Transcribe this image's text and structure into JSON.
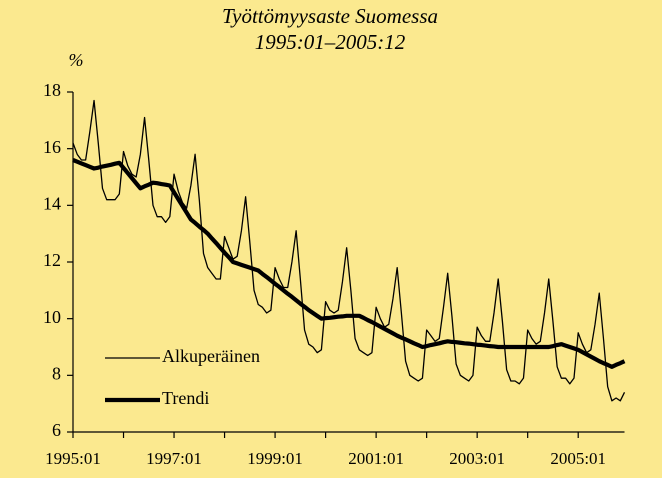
{
  "chart_data": {
    "type": "line",
    "title": "Työttömyysaste Suomessa",
    "subtitle": "1995:01–2005:12",
    "y_label": "%",
    "categories": [
      "1995:01",
      null,
      null,
      null,
      null,
      null,
      null,
      null,
      null,
      null,
      null,
      null,
      null,
      null,
      null,
      null,
      null,
      null,
      null,
      null,
      null,
      null,
      null,
      null,
      "1997:01",
      null,
      null,
      null,
      null,
      null,
      null,
      null,
      null,
      null,
      null,
      null,
      null,
      null,
      null,
      null,
      null,
      null,
      null,
      null,
      null,
      null,
      null,
      null,
      "1999:01",
      null,
      null,
      null,
      null,
      null,
      null,
      null,
      null,
      null,
      null,
      null,
      null,
      null,
      null,
      null,
      null,
      null,
      null,
      null,
      null,
      null,
      null,
      null,
      "2001:01",
      null,
      null,
      null,
      null,
      null,
      null,
      null,
      null,
      null,
      null,
      null,
      null,
      null,
      null,
      null,
      null,
      null,
      null,
      null,
      null,
      null,
      null,
      null,
      "2003:01",
      null,
      null,
      null,
      null,
      null,
      null,
      null,
      null,
      null,
      null,
      null,
      null,
      null,
      null,
      null,
      null,
      null,
      null,
      null,
      null,
      null,
      null,
      null,
      "2005:01",
      null,
      null,
      null,
      null,
      null,
      null,
      null,
      null,
      null,
      null,
      null
    ],
    "series": [
      {
        "name": "Alkuperäinen",
        "color": "#000000",
        "values": [
          16.2,
          15.8,
          15.6,
          15.6,
          16.6,
          17.7,
          16.2,
          14.6,
          14.2,
          14.2,
          14.2,
          14.4,
          15.9,
          15.4,
          15.1,
          15.0,
          15.8,
          17.1,
          15.6,
          14.0,
          13.6,
          13.6,
          13.4,
          13.6,
          15.1,
          14.5,
          14.1,
          13.9,
          14.7,
          15.8,
          14.2,
          12.3,
          11.8,
          11.6,
          11.4,
          11.4,
          12.9,
          12.5,
          12.1,
          12.2,
          13.1,
          14.3,
          12.7,
          11.0,
          10.5,
          10.4,
          10.2,
          10.3,
          11.8,
          11.4,
          11.1,
          11.1,
          12.0,
          13.1,
          11.4,
          9.6,
          9.1,
          9.0,
          8.8,
          8.9,
          10.6,
          10.3,
          10.2,
          10.3,
          11.3,
          12.5,
          11.0,
          9.3,
          8.9,
          8.8,
          8.7,
          8.8,
          10.4,
          10.0,
          9.7,
          9.8,
          10.7,
          11.8,
          10.2,
          8.5,
          8.0,
          7.9,
          7.8,
          7.9,
          9.6,
          9.4,
          9.2,
          9.3,
          10.4,
          11.6,
          10.1,
          8.4,
          8.0,
          7.9,
          7.8,
          8.0,
          9.7,
          9.4,
          9.2,
          9.2,
          10.2,
          11.4,
          9.9,
          8.2,
          7.8,
          7.8,
          7.7,
          7.9,
          9.6,
          9.3,
          9.1,
          9.2,
          10.2,
          11.4,
          9.9,
          8.3,
          7.9,
          7.9,
          7.7,
          7.9,
          9.5,
          9.1,
          8.8,
          8.9,
          9.8,
          10.9,
          9.3,
          7.6,
          7.1,
          7.2,
          7.1,
          7.4
        ]
      },
      {
        "name": "Trendi",
        "color": "#000000",
        "values": [
          15.6,
          15.54,
          15.48,
          15.42,
          15.36,
          15.3,
          15.33,
          15.37,
          15.4,
          15.43,
          15.47,
          15.5,
          15.32,
          15.14,
          14.96,
          14.78,
          14.6,
          14.67,
          14.73,
          14.8,
          14.78,
          14.75,
          14.73,
          14.7,
          14.46,
          14.22,
          13.98,
          13.74,
          13.5,
          13.38,
          13.25,
          13.13,
          13.0,
          12.83,
          12.67,
          12.5,
          12.33,
          12.17,
          12.0,
          11.95,
          11.9,
          11.85,
          11.8,
          11.75,
          11.7,
          11.58,
          11.47,
          11.35,
          11.23,
          11.12,
          11.0,
          10.88,
          10.77,
          10.65,
          10.53,
          10.42,
          10.3,
          10.2,
          10.1,
          10.0,
          10.02,
          10.03,
          10.05,
          10.07,
          10.08,
          10.1,
          10.1,
          10.1,
          10.1,
          10.03,
          9.95,
          9.88,
          9.8,
          9.72,
          9.64,
          9.56,
          9.48,
          9.4,
          9.33,
          9.27,
          9.2,
          9.13,
          9.07,
          9.0,
          9.03,
          9.07,
          9.1,
          9.13,
          9.17,
          9.2,
          9.18,
          9.17,
          9.15,
          9.13,
          9.12,
          9.1,
          9.08,
          9.07,
          9.05,
          9.03,
          9.02,
          9.0,
          9.0,
          9.0,
          9.0,
          9.0,
          9.0,
          9.0,
          9.0,
          9.0,
          9.0,
          9.0,
          9.0,
          9.0,
          9.03,
          9.07,
          9.1,
          9.05,
          9.0,
          8.95,
          8.9,
          8.82,
          8.74,
          8.66,
          8.58,
          8.5,
          8.43,
          8.37,
          8.3,
          8.37,
          8.43,
          8.5
        ]
      }
    ],
    "ylim": [
      6,
      18
    ],
    "yticks": [
      6,
      8,
      10,
      12,
      14,
      16,
      18
    ],
    "legend": "lower left",
    "grid": false
  }
}
